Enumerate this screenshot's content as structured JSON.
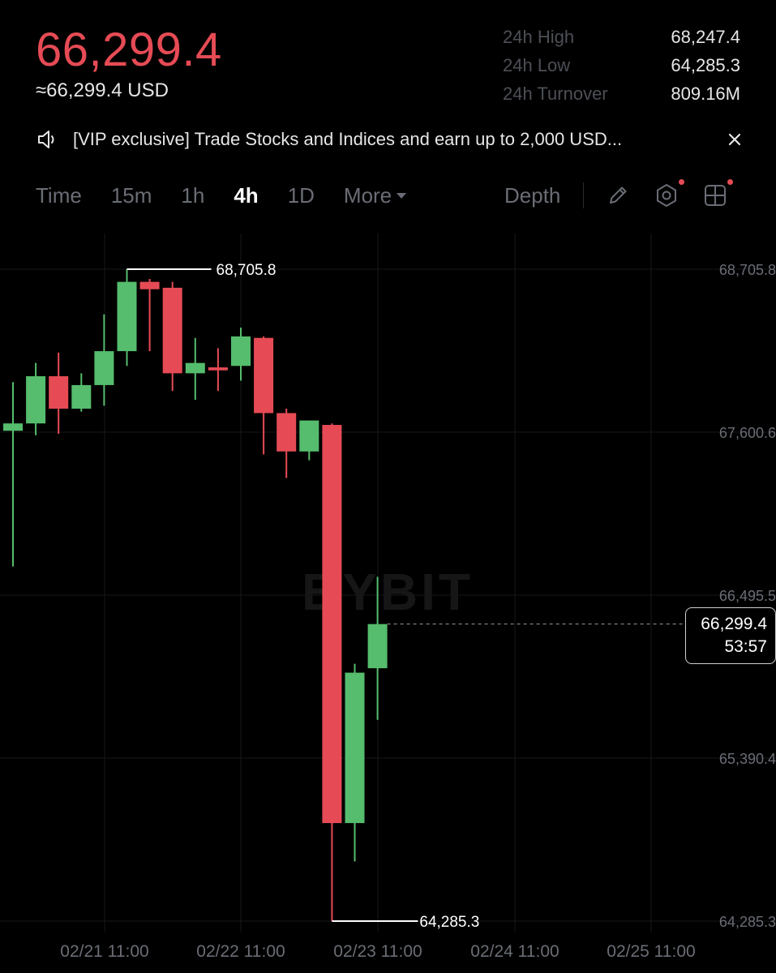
{
  "header": {
    "last_price": "66,299.4",
    "usd_price": "≈66,299.4 USD",
    "stats": [
      {
        "label": "24h High",
        "value": "68,247.4"
      },
      {
        "label": "24h Low",
        "value": "64,285.3"
      },
      {
        "label": "24h Turnover",
        "value": "809.16M"
      }
    ]
  },
  "banner": {
    "text": "[VIP exclusive] Trade Stocks and Indices and earn up to 2,000 USD..."
  },
  "timeframes": {
    "items": [
      "Time",
      "15m",
      "1h",
      "4h",
      "1D"
    ],
    "active": "4h",
    "more_label": "More",
    "depth_label": "Depth"
  },
  "chart_data": {
    "type": "candlestick",
    "watermark": "BYBIT",
    "x_tick_labels": [
      "02/21 11:00",
      "02/22 11:00",
      "02/23 11:00",
      "02/24 11:00",
      "02/25 11:00"
    ],
    "y_tick_labels": [
      "68,705.8",
      "67,600.6",
      "66,495.5",
      "65,390.4",
      "64,285.3"
    ],
    "ylim": [
      64285.3,
      68705.8
    ],
    "high_marker": "68,705.8",
    "low_marker": "64,285.3",
    "current_price_label": "66,299.4",
    "countdown": "53:57",
    "colors": {
      "up": "#55bd6d",
      "down": "#e64b55",
      "grid": "#15171b"
    },
    "candles": [
      {
        "o": 67610,
        "h": 67940,
        "l": 66690,
        "c": 67660
      },
      {
        "o": 67660,
        "h": 68070,
        "l": 67580,
        "c": 67980
      },
      {
        "o": 67980,
        "h": 68140,
        "l": 67590,
        "c": 67760
      },
      {
        "o": 67760,
        "h": 68000,
        "l": 67740,
        "c": 67920
      },
      {
        "o": 67920,
        "h": 68400,
        "l": 67780,
        "c": 68150
      },
      {
        "o": 68150,
        "h": 68705.8,
        "l": 68050,
        "c": 68620
      },
      {
        "o": 68620,
        "h": 68640,
        "l": 68150,
        "c": 68570
      },
      {
        "o": 68580,
        "h": 68620,
        "l": 67880,
        "c": 68000
      },
      {
        "o": 68000,
        "h": 68240,
        "l": 67820,
        "c": 68070
      },
      {
        "o": 68040,
        "h": 68170,
        "l": 67880,
        "c": 68020
      },
      {
        "o": 68050,
        "h": 68310,
        "l": 67950,
        "c": 68250
      },
      {
        "o": 68240,
        "h": 68250,
        "l": 67450,
        "c": 67730
      },
      {
        "o": 67730,
        "h": 67760,
        "l": 67290,
        "c": 67470
      },
      {
        "o": 67470,
        "h": 67670,
        "l": 67410,
        "c": 67680
      },
      {
        "o": 67650,
        "h": 67660,
        "l": 64285.3,
        "c": 64950
      },
      {
        "o": 64950,
        "h": 66030,
        "l": 64690,
        "c": 65970
      },
      {
        "o": 66000,
        "h": 66620,
        "l": 65650,
        "c": 66299.4
      }
    ]
  }
}
